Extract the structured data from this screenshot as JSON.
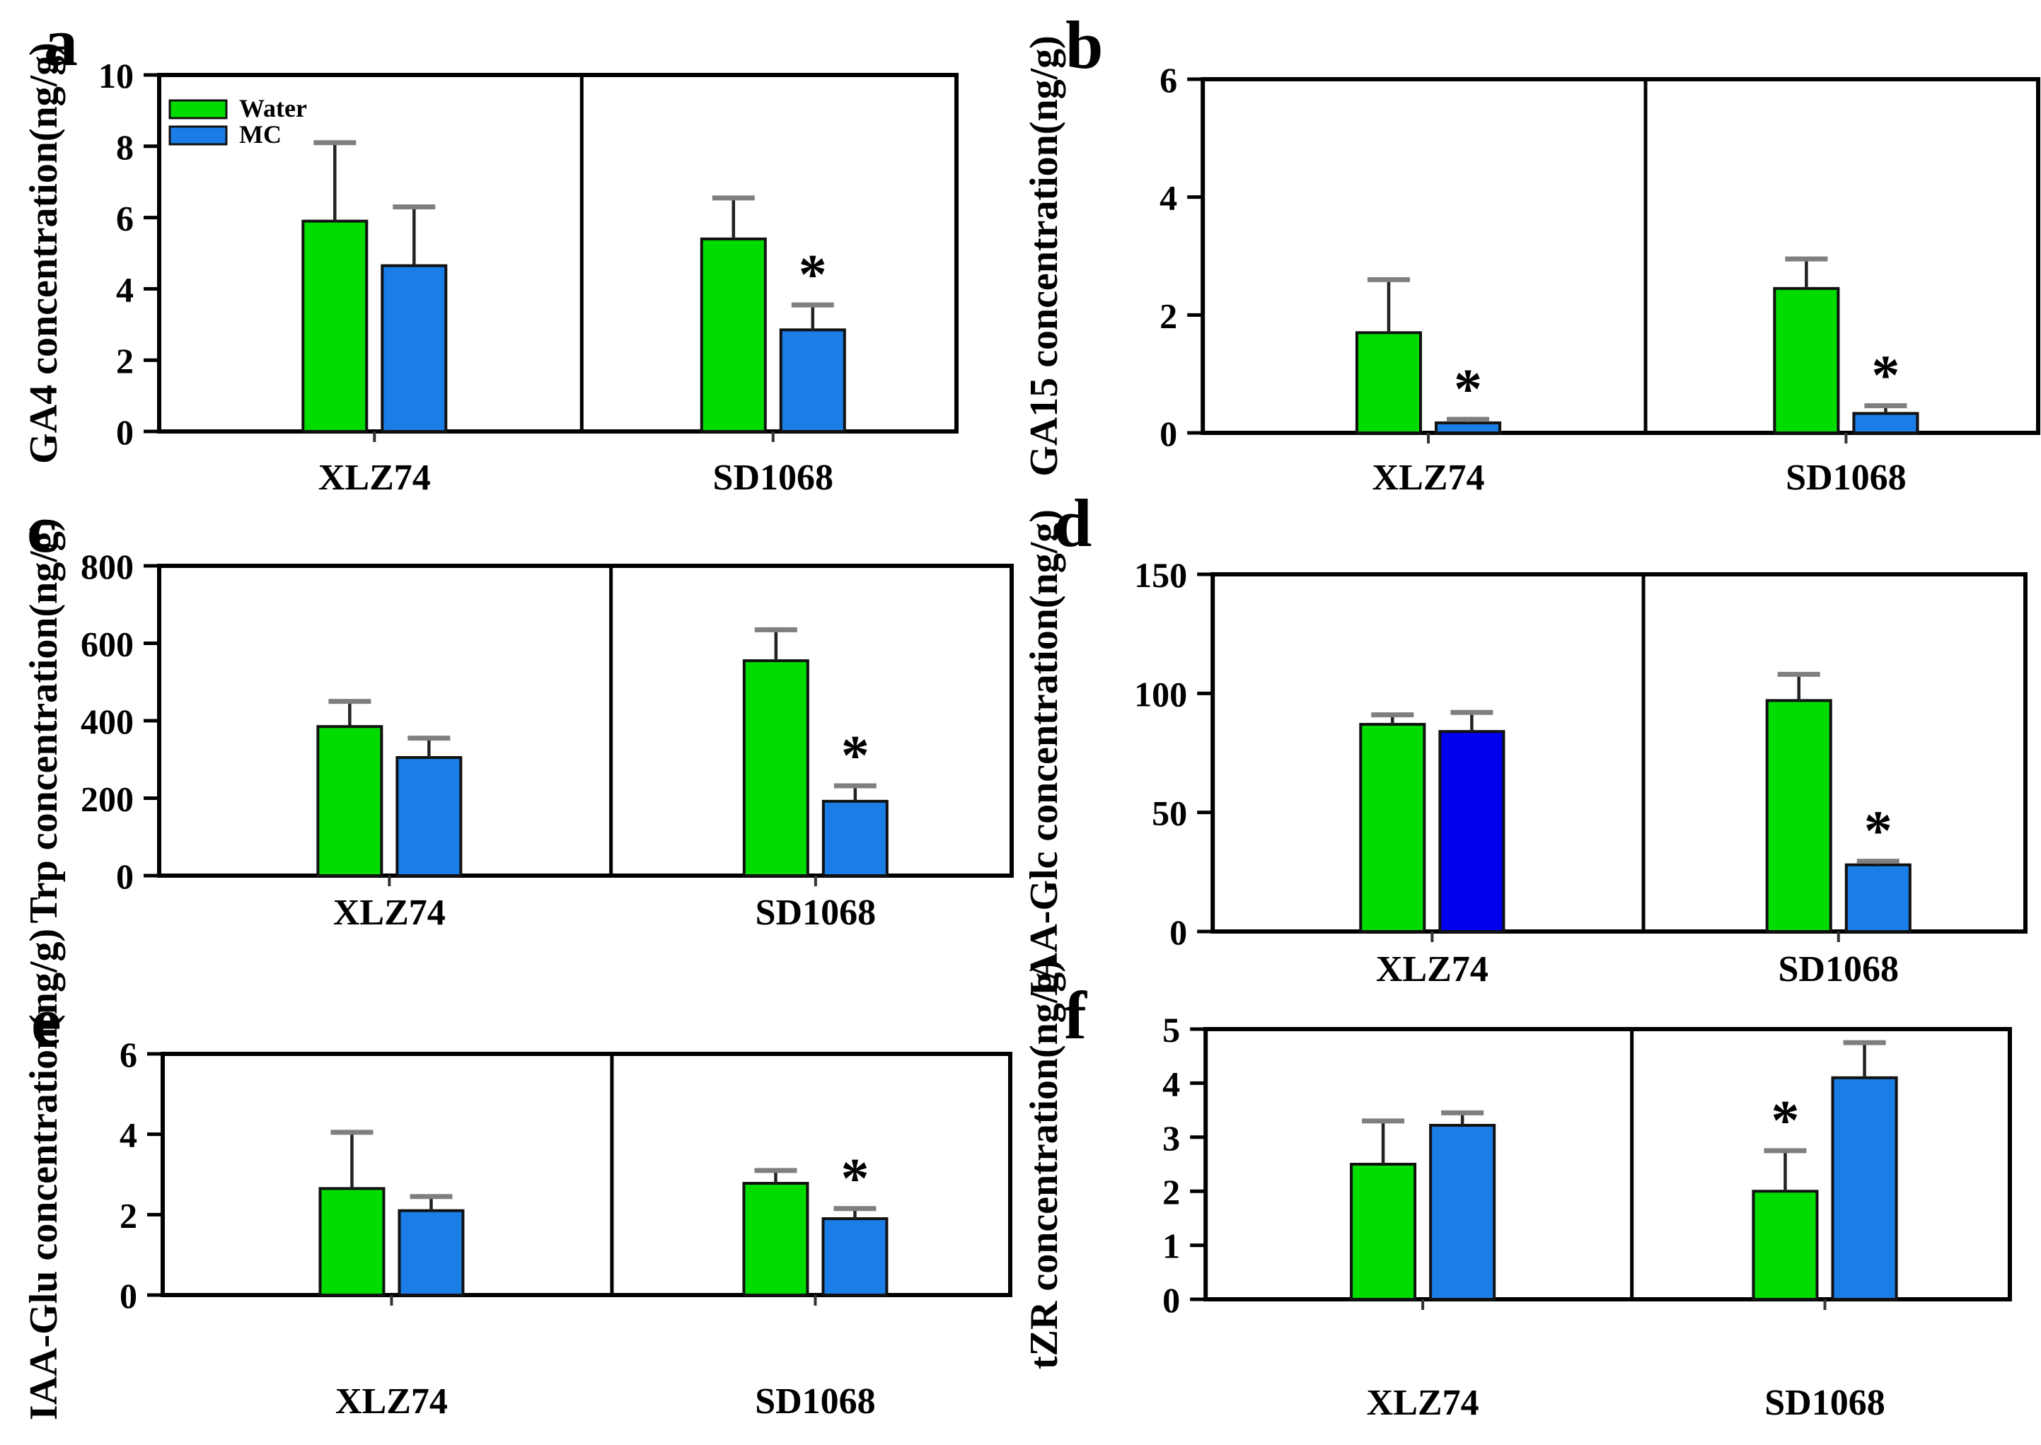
{
  "figure": {
    "background": "#ffffff",
    "sig_marker": "*",
    "panel_letters": {
      "a": "a",
      "b": "b",
      "c": "c",
      "d": "d",
      "e": "e",
      "f": "f"
    },
    "legend": {
      "position": "top-left-panel-a",
      "items": [
        {
          "label": "Water",
          "color": "#00dc00"
        },
        {
          "label": "MC",
          "color": "#1b7ee6"
        }
      ]
    },
    "palette": {
      "water_green": "#00dc00",
      "mc_blue": "#1b7ee6",
      "mc_dark_blue": "#0000ee",
      "error_cap_gray": "#7f7f7f",
      "axis_black": "#000000"
    },
    "cultivars": [
      "XLZ74",
      "SD1068"
    ],
    "treatments": [
      "Water",
      "MC"
    ]
  },
  "chart_data": [
    {
      "id": "a",
      "letter": "a",
      "type": "bar",
      "title": "",
      "xlabel": "",
      "ylabel": "GA4 concentration(ng/g)",
      "ylim": [
        0,
        10
      ],
      "yticks": [
        0,
        2,
        4,
        6,
        8,
        10
      ],
      "grid": false,
      "legend": true,
      "categories": [
        "XLZ74",
        "SD1068"
      ],
      "series": [
        {
          "name": "Water",
          "colors": [
            "#00dc00",
            "#00dc00"
          ],
          "values": [
            5.9,
            5.4
          ],
          "errors_up": [
            2.2,
            1.15
          ],
          "sig": [
            false,
            false
          ]
        },
        {
          "name": "MC",
          "colors": [
            "#1b7ee6",
            "#1b7ee6"
          ],
          "values": [
            4.65,
            2.85
          ],
          "errors_up": [
            1.65,
            0.7
          ],
          "sig": [
            false,
            true
          ]
        }
      ]
    },
    {
      "id": "b",
      "letter": "b",
      "type": "bar",
      "title": "",
      "xlabel": "",
      "ylabel": "GA15 concentration(ng/g)",
      "ylim": [
        0,
        6
      ],
      "yticks": [
        0,
        2,
        4,
        6
      ],
      "grid": false,
      "legend": false,
      "categories": [
        "XLZ74",
        "SD1068"
      ],
      "series": [
        {
          "name": "Water",
          "colors": [
            "#00dc00",
            "#00dc00"
          ],
          "values": [
            1.7,
            2.45
          ],
          "errors_up": [
            0.9,
            0.5
          ],
          "sig": [
            false,
            false
          ]
        },
        {
          "name": "MC",
          "colors": [
            "#1b7ee6",
            "#1b7ee6"
          ],
          "values": [
            0.17,
            0.33
          ],
          "errors_up": [
            0.06,
            0.13
          ],
          "sig": [
            true,
            true
          ]
        }
      ]
    },
    {
      "id": "c",
      "letter": "c",
      "type": "bar",
      "title": "",
      "xlabel": "",
      "ylabel": "Trp concentration(ng/g)",
      "ylim": [
        0,
        800
      ],
      "yticks": [
        0,
        200,
        400,
        600,
        800
      ],
      "grid": false,
      "legend": false,
      "categories": [
        "XLZ74",
        "SD1068"
      ],
      "series": [
        {
          "name": "Water",
          "colors": [
            "#00dc00",
            "#00dc00"
          ],
          "values": [
            385,
            555
          ],
          "errors_up": [
            65,
            80
          ],
          "sig": [
            false,
            false
          ]
        },
        {
          "name": "MC",
          "colors": [
            "#1b7ee6",
            "#1b7ee6"
          ],
          "values": [
            305,
            192
          ],
          "errors_up": [
            50,
            40
          ],
          "sig": [
            false,
            true
          ]
        }
      ]
    },
    {
      "id": "d",
      "letter": "d",
      "type": "bar",
      "title": "",
      "xlabel": "",
      "ylabel": "IAA-Glc concentration(ng/g)",
      "ylim": [
        0,
        150
      ],
      "yticks": [
        0,
        50,
        100,
        150
      ],
      "grid": false,
      "legend": false,
      "categories": [
        "XLZ74",
        "SD1068"
      ],
      "series": [
        {
          "name": "Water",
          "colors": [
            "#00dc00",
            "#00dc00"
          ],
          "values": [
            87,
            97
          ],
          "errors_up": [
            4,
            11
          ],
          "sig": [
            false,
            false
          ]
        },
        {
          "name": "MC",
          "colors": [
            "#0000ee",
            "#1b7ee6"
          ],
          "values": [
            84,
            28
          ],
          "errors_up": [
            8,
            1.5
          ],
          "sig": [
            false,
            true
          ]
        }
      ]
    },
    {
      "id": "e",
      "letter": "e",
      "type": "bar",
      "title": "",
      "xlabel": "",
      "ylabel": "IAA-Glu concentration(ng/g)",
      "ylim": [
        0,
        6
      ],
      "yticks": [
        0,
        2,
        4,
        6
      ],
      "grid": false,
      "legend": false,
      "categories": [
        "XLZ74",
        "SD1068"
      ],
      "series": [
        {
          "name": "Water",
          "colors": [
            "#00dc00",
            "#00dc00"
          ],
          "values": [
            2.65,
            2.78
          ],
          "errors_up": [
            1.4,
            0.32
          ],
          "sig": [
            false,
            false
          ]
        },
        {
          "name": "MC",
          "colors": [
            "#1b7ee6",
            "#1b7ee6"
          ],
          "values": [
            2.1,
            1.9
          ],
          "errors_up": [
            0.35,
            0.25
          ],
          "sig": [
            false,
            true
          ]
        }
      ]
    },
    {
      "id": "f",
      "letter": "f",
      "type": "bar",
      "title": "",
      "xlabel": "",
      "ylabel": "tZR concentration(ng/g)",
      "ylim": [
        0,
        5
      ],
      "yticks": [
        0,
        1,
        2,
        3,
        4,
        5
      ],
      "grid": false,
      "legend": false,
      "categories": [
        "XLZ74",
        "SD1068"
      ],
      "series": [
        {
          "name": "Water",
          "colors": [
            "#00dc00",
            "#00dc00"
          ],
          "values": [
            2.5,
            2.0
          ],
          "errors_up": [
            0.8,
            0.75
          ],
          "sig": [
            false,
            true
          ]
        },
        {
          "name": "MC",
          "colors": [
            "#1b7ee6",
            "#1b7ee6"
          ],
          "values": [
            3.22,
            4.1
          ],
          "errors_up": [
            0.23,
            0.65
          ],
          "sig": [
            false,
            false
          ]
        }
      ]
    }
  ]
}
